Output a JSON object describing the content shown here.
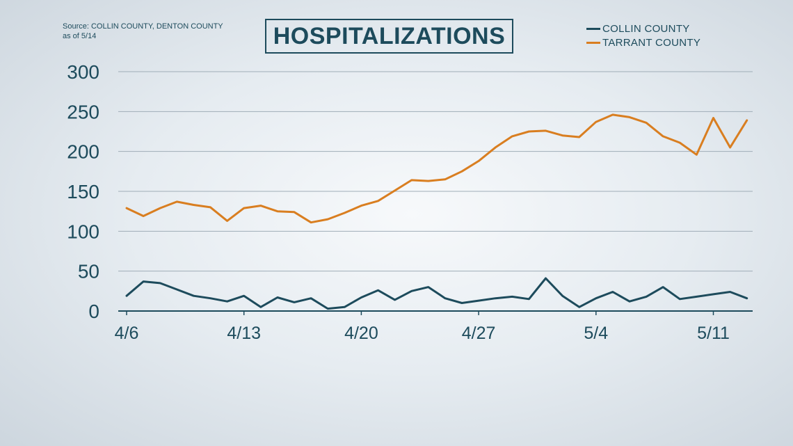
{
  "source": {
    "line1": "Source: COLLIN COUNTY, DENTON COUNTY",
    "line2": "as of 5/14"
  },
  "chart_data": {
    "type": "line",
    "title": "HOSPITALIZATIONS",
    "xlabel": "",
    "ylabel": "",
    "ylim": [
      0,
      300
    ],
    "yticks": [
      0,
      50,
      100,
      150,
      200,
      250,
      300
    ],
    "x_ticks": [
      {
        "label": "4/6",
        "index": 0
      },
      {
        "label": "4/13",
        "index": 7
      },
      {
        "label": "4/20",
        "index": 14
      },
      {
        "label": "4/27",
        "index": 21
      },
      {
        "label": "5/4",
        "index": 28
      },
      {
        "label": "5/11",
        "index": 35
      }
    ],
    "x": [
      "4/6",
      "4/7",
      "4/8",
      "4/9",
      "4/10",
      "4/11",
      "4/12",
      "4/13",
      "4/14",
      "4/15",
      "4/16",
      "4/17",
      "4/18",
      "4/19",
      "4/20",
      "4/21",
      "4/22",
      "4/23",
      "4/24",
      "4/25",
      "4/26",
      "4/27",
      "4/28",
      "4/29",
      "4/30",
      "5/1",
      "5/2",
      "5/3",
      "5/4",
      "5/5",
      "5/6",
      "5/7",
      "5/8",
      "5/9",
      "5/10",
      "5/11",
      "5/12",
      "5/13"
    ],
    "grid": true,
    "legend_position": "top-right",
    "series": [
      {
        "name": "COLLIN COUNTY",
        "color": "#1d4b5c",
        "values": [
          19,
          37,
          35,
          27,
          19,
          16,
          12,
          19,
          5,
          17,
          11,
          16,
          3,
          5,
          17,
          26,
          14,
          25,
          30,
          16,
          10,
          13,
          16,
          18,
          15,
          41,
          19,
          5,
          16,
          24,
          12,
          18,
          30,
          15,
          18,
          21,
          24,
          16
        ]
      },
      {
        "name": "TARRANT COUNTY",
        "color": "#d97e20",
        "values": [
          129,
          119,
          129,
          137,
          133,
          130,
          113,
          129,
          132,
          125,
          124,
          111,
          115,
          123,
          132,
          138,
          151,
          164,
          163,
          165,
          175,
          188,
          205,
          219,
          225,
          226,
          220,
          218,
          237,
          246,
          243,
          236,
          219,
          211,
          196,
          242,
          205,
          239
        ]
      }
    ]
  },
  "colors": {
    "text": "#1d4b5c",
    "grid": "#9fadb7",
    "axis": "#1d4b5c"
  }
}
